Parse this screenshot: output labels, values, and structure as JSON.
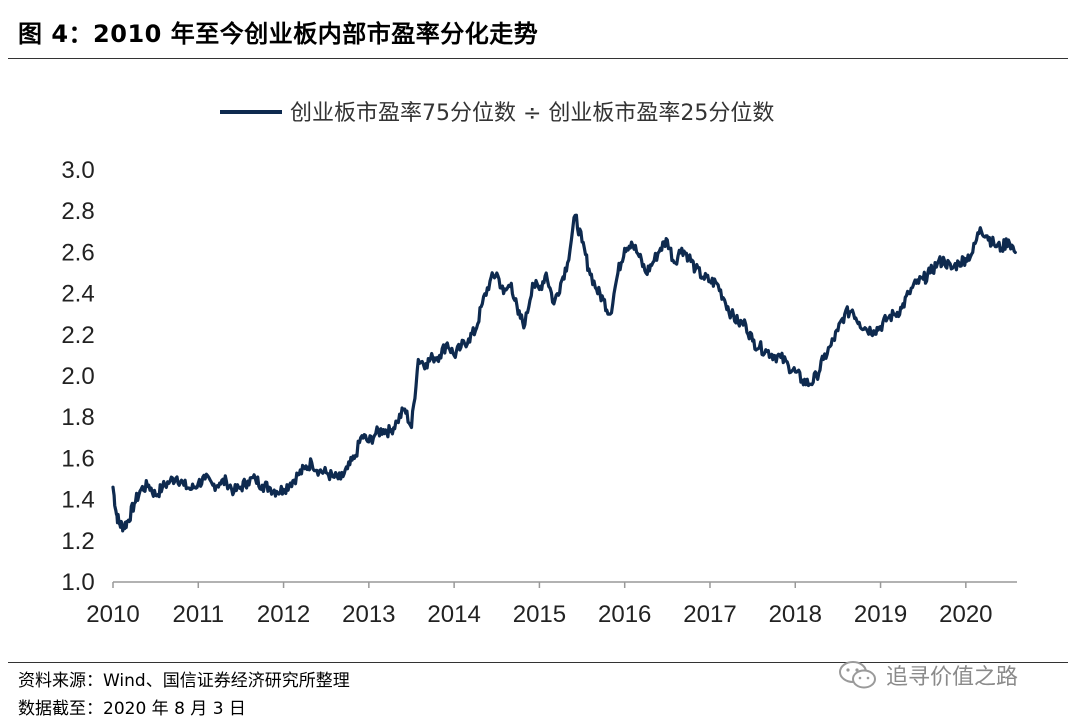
{
  "header": {
    "title": "图 4：2010 年至今创业板内部市盈率分化走势"
  },
  "footer": {
    "source": "资料来源：Wind、国信证券经济研究所整理",
    "date": "数据截至：2020 年 8 月 3 日"
  },
  "watermark": {
    "text": "追寻价值之路",
    "icon": "wechat-icon"
  },
  "colors": {
    "series": "#0e2a4f",
    "axis": "#999999",
    "rule": "#333333"
  },
  "chart_data": {
    "type": "line",
    "title": "",
    "xlabel": "",
    "ylabel": "",
    "legend_position": "top-center",
    "grid": false,
    "xlim": [
      2010.0,
      2020.6
    ],
    "ylim": [
      1.0,
      3.0
    ],
    "x_ticks": [
      "2010",
      "2011",
      "2012",
      "2013",
      "2014",
      "2015",
      "2016",
      "2017",
      "2018",
      "2019",
      "2020"
    ],
    "y_ticks": [
      "1.0",
      "1.2",
      "1.4",
      "1.6",
      "1.8",
      "2.0",
      "2.2",
      "2.4",
      "2.6",
      "2.8",
      "3.0"
    ],
    "series": [
      {
        "name": "创业板市盈率75分位数 ÷ 创业板市盈率25分位数",
        "x": [
          2010.0,
          2010.04,
          2010.08,
          2010.13,
          2010.18,
          2010.25,
          2010.33,
          2010.42,
          2010.5,
          2010.58,
          2010.67,
          2010.75,
          2010.83,
          2010.92,
          2011.0,
          2011.08,
          2011.17,
          2011.25,
          2011.33,
          2011.42,
          2011.5,
          2011.58,
          2011.67,
          2011.75,
          2011.83,
          2011.92,
          2012.0,
          2012.08,
          2012.17,
          2012.25,
          2012.33,
          2012.42,
          2012.5,
          2012.58,
          2012.67,
          2012.75,
          2012.83,
          2012.92,
          2013.0,
          2013.08,
          2013.17,
          2013.25,
          2013.33,
          2013.42,
          2013.5,
          2013.58,
          2013.67,
          2013.75,
          2013.83,
          2013.92,
          2014.0,
          2014.08,
          2014.17,
          2014.25,
          2014.33,
          2014.42,
          2014.5,
          2014.58,
          2014.67,
          2014.75,
          2014.83,
          2014.92,
          2015.0,
          2015.08,
          2015.17,
          2015.25,
          2015.33,
          2015.42,
          2015.5,
          2015.58,
          2015.67,
          2015.75,
          2015.83,
          2015.92,
          2016.0,
          2016.08,
          2016.17,
          2016.25,
          2016.33,
          2016.42,
          2016.5,
          2016.58,
          2016.67,
          2016.75,
          2016.83,
          2016.92,
          2017.0,
          2017.08,
          2017.17,
          2017.25,
          2017.33,
          2017.42,
          2017.5,
          2017.58,
          2017.67,
          2017.75,
          2017.83,
          2017.92,
          2018.0,
          2018.08,
          2018.17,
          2018.25,
          2018.33,
          2018.42,
          2018.5,
          2018.58,
          2018.67,
          2018.75,
          2018.83,
          2018.92,
          2019.0,
          2019.08,
          2019.17,
          2019.25,
          2019.33,
          2019.42,
          2019.5,
          2019.58,
          2019.67,
          2019.75,
          2019.83,
          2019.92,
          2020.0,
          2020.08,
          2020.17,
          2020.25,
          2020.33,
          2020.42,
          2020.5,
          2020.58
        ],
        "values": [
          1.46,
          1.33,
          1.28,
          1.27,
          1.3,
          1.38,
          1.45,
          1.47,
          1.42,
          1.46,
          1.49,
          1.51,
          1.47,
          1.45,
          1.48,
          1.5,
          1.47,
          1.48,
          1.49,
          1.44,
          1.46,
          1.49,
          1.5,
          1.47,
          1.46,
          1.44,
          1.45,
          1.48,
          1.52,
          1.55,
          1.58,
          1.54,
          1.53,
          1.51,
          1.5,
          1.55,
          1.6,
          1.71,
          1.68,
          1.72,
          1.74,
          1.73,
          1.78,
          1.84,
          1.75,
          2.08,
          2.06,
          2.09,
          2.1,
          2.16,
          2.1,
          2.14,
          2.18,
          2.22,
          2.35,
          2.46,
          2.5,
          2.4,
          2.45,
          2.3,
          2.25,
          2.45,
          2.42,
          2.5,
          2.35,
          2.45,
          2.55,
          2.78,
          2.65,
          2.52,
          2.42,
          2.37,
          2.3,
          2.5,
          2.62,
          2.65,
          2.58,
          2.5,
          2.55,
          2.62,
          2.66,
          2.55,
          2.62,
          2.58,
          2.52,
          2.48,
          2.46,
          2.45,
          2.37,
          2.3,
          2.26,
          2.25,
          2.17,
          2.14,
          2.12,
          2.1,
          2.09,
          2.05,
          2.02,
          1.98,
          1.96,
          2.0,
          2.08,
          2.15,
          2.22,
          2.3,
          2.32,
          2.26,
          2.23,
          2.22,
          2.24,
          2.28,
          2.3,
          2.33,
          2.4,
          2.45,
          2.47,
          2.5,
          2.55,
          2.56,
          2.52,
          2.55,
          2.57,
          2.6,
          2.72,
          2.68,
          2.64,
          2.62,
          2.66,
          2.6
        ]
      }
    ]
  }
}
